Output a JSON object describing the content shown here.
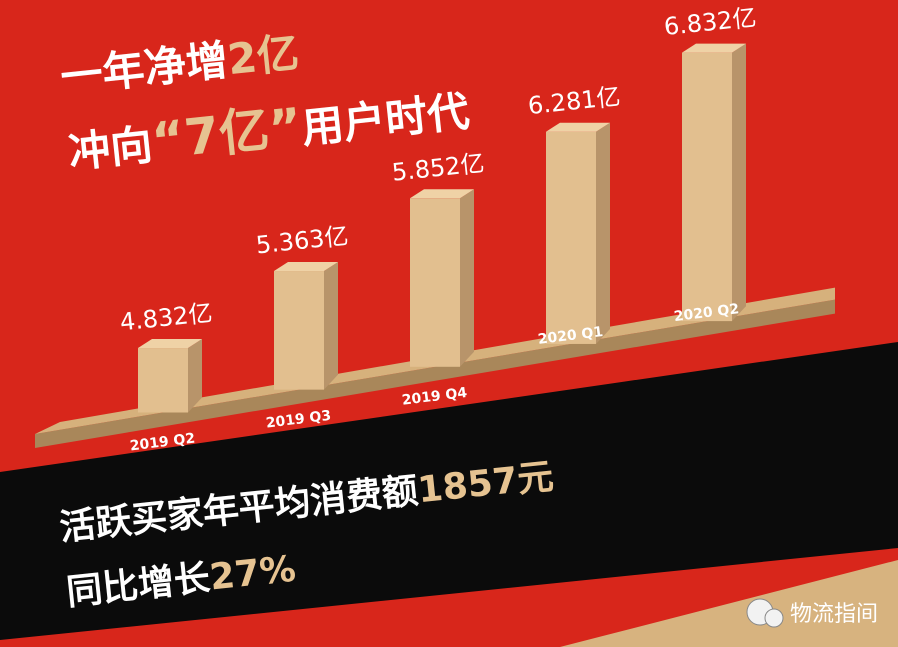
{
  "headline": {
    "line1": [
      "一年净增",
      "2亿"
    ],
    "line2": [
      "冲向",
      "“7亿”",
      "用户时代"
    ]
  },
  "chart_data": {
    "type": "bar",
    "categories": [
      "2019 Q2",
      "2019 Q3",
      "2019 Q4",
      "2020 Q1",
      "2020 Q2"
    ],
    "values": [
      4.832,
      5.363,
      5.852,
      6.281,
      6.832
    ],
    "value_labels": [
      "4.832亿",
      "5.363亿",
      "5.852亿",
      "6.281亿",
      "6.832亿"
    ],
    "color": "#e2bf8f",
    "ylim": [
      4.2,
      7.0
    ]
  },
  "footer": {
    "line1": [
      "活跃买家年平均消费额",
      "1857元"
    ],
    "line2": [
      "同比增长",
      "27%"
    ]
  },
  "watermark": "物流指间"
}
